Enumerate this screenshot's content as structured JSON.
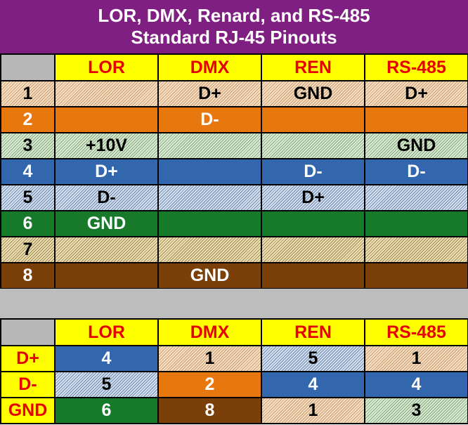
{
  "title": {
    "line1": "LOR, DMX, Renard, and RS-485",
    "line2": "Standard RJ-45 Pinouts"
  },
  "columns": [
    "LOR",
    "DMX",
    "REN",
    "RS-485"
  ],
  "colors": {
    "header_bg": "#ffff00",
    "header_text": "#e60000",
    "title_bg": "#7f1f82",
    "orange": "#e7780f",
    "blue": "#3367ad",
    "green": "#167a2a",
    "brown": "#7b3f0a"
  },
  "pin_rows": [
    {
      "pin": "1",
      "wire": "white-orange",
      "cells": [
        "",
        "D+",
        "GND",
        "D+"
      ]
    },
    {
      "pin": "2",
      "wire": "orange",
      "cells": [
        "",
        "D-",
        "",
        ""
      ]
    },
    {
      "pin": "3",
      "wire": "white-green",
      "cells": [
        "+10V",
        "",
        "",
        "GND"
      ]
    },
    {
      "pin": "4",
      "wire": "blue",
      "cells": [
        "D+",
        "",
        "D-",
        "D-"
      ]
    },
    {
      "pin": "5",
      "wire": "white-blue",
      "cells": [
        "D-",
        "",
        "D+",
        ""
      ]
    },
    {
      "pin": "6",
      "wire": "green",
      "cells": [
        "GND",
        "",
        "",
        ""
      ]
    },
    {
      "pin": "7",
      "wire": "white-brown",
      "cells": [
        "",
        "",
        "",
        ""
      ]
    },
    {
      "pin": "8",
      "wire": "brown",
      "cells": [
        "",
        "GND",
        "",
        ""
      ]
    }
  ],
  "signal_rows": [
    {
      "signal": "D+",
      "cells": [
        {
          "value": "4",
          "wire": "blue"
        },
        {
          "value": "1",
          "wire": "white-orange"
        },
        {
          "value": "5",
          "wire": "white-blue"
        },
        {
          "value": "1",
          "wire": "white-orange"
        }
      ]
    },
    {
      "signal": "D-",
      "cells": [
        {
          "value": "5",
          "wire": "white-blue"
        },
        {
          "value": "2",
          "wire": "orange"
        },
        {
          "value": "4",
          "wire": "blue"
        },
        {
          "value": "4",
          "wire": "blue"
        }
      ]
    },
    {
      "signal": "GND",
      "cells": [
        {
          "value": "6",
          "wire": "green"
        },
        {
          "value": "8",
          "wire": "brown"
        },
        {
          "value": "1",
          "wire": "white-orange"
        },
        {
          "value": "3",
          "wire": "white-green"
        }
      ]
    }
  ]
}
